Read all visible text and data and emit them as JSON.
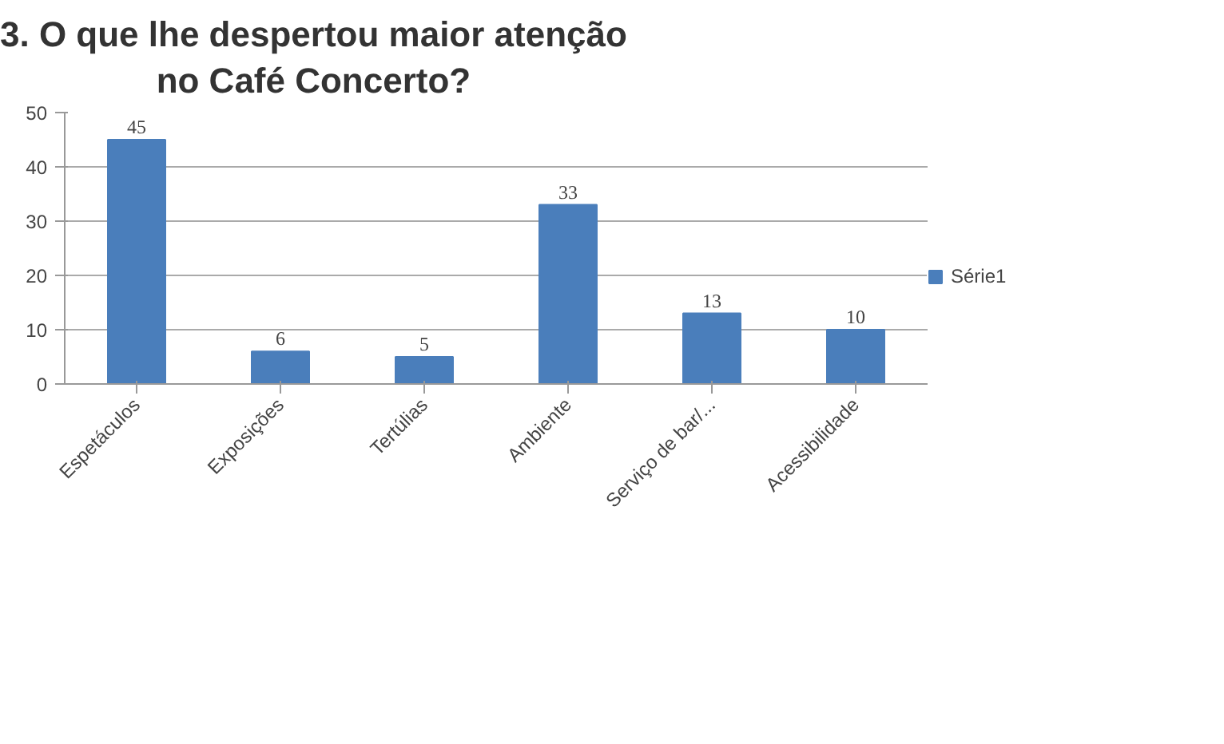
{
  "chart_data": {
    "type": "bar",
    "title": "3. O que lhe despertou maior atenção\nno Café Concerto?",
    "categories": [
      "Espetáculos",
      "Exposições",
      "Tertúlias",
      "Ambiente",
      "Serviço de bar/...",
      "Acessibilidade"
    ],
    "series": [
      {
        "name": "Série1",
        "color": "#4a7ebb",
        "values": [
          45,
          6,
          5,
          33,
          13,
          10
        ]
      }
    ],
    "ylim": [
      0,
      50
    ],
    "yticks": [
      0,
      10,
      20,
      30,
      40,
      50
    ],
    "grid": "y",
    "legend": "right",
    "data_labels": true
  }
}
